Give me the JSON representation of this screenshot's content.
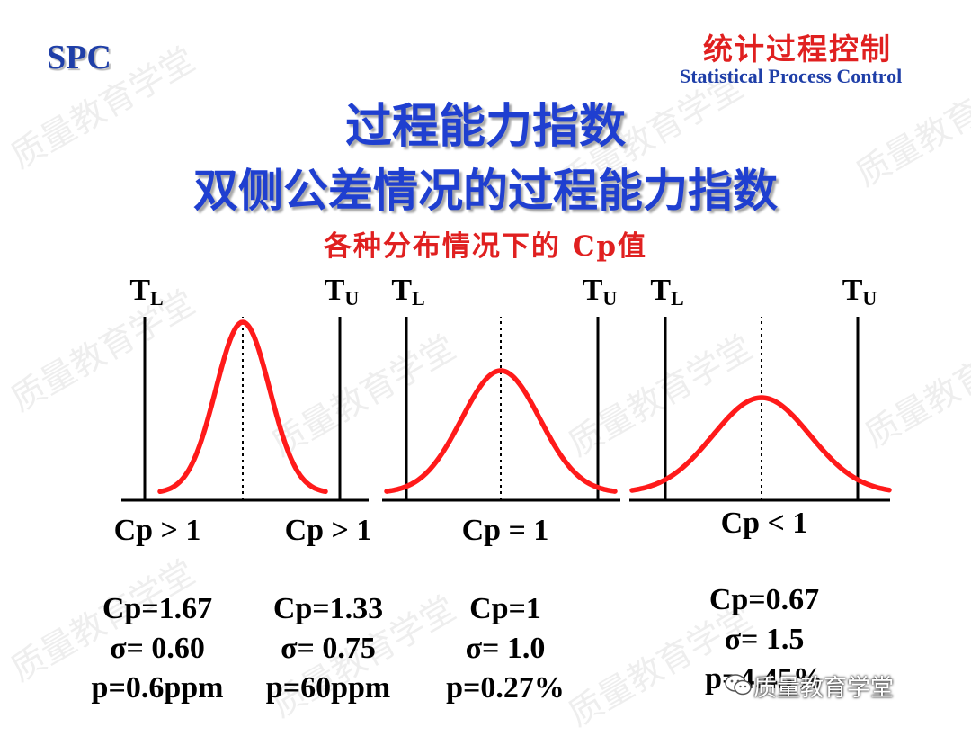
{
  "header": {
    "spc": "SPC",
    "topic_cn": "统计过程控制",
    "topic_en": "Statistical Process Control"
  },
  "title": {
    "line1": "过程能力指数",
    "line2": "双侧公差情况的过程能力指数"
  },
  "subtitle": "各种分布情况下的 Cp值",
  "panels": [
    {
      "lower_label": "T",
      "lower_sub": "L",
      "upper_label": "T",
      "upper_sub": "U",
      "captions": [
        "Cp > 1",
        "Cp > 1"
      ],
      "peak_level": 0.95
    },
    {
      "lower_label": "T",
      "lower_sub": "L",
      "upper_label": "T",
      "upper_sub": "U",
      "captions": [
        "Cp = 1"
      ],
      "peak_level": 0.68
    },
    {
      "lower_label": "T",
      "lower_sub": "L",
      "upper_label": "T",
      "upper_sub": "U",
      "captions": [
        "Cp < 1"
      ],
      "peak_level": 0.53
    }
  ],
  "stats": [
    {
      "cp": "Cp=1.67",
      "sigma": "σ= 0.60",
      "p": "p=0.6ppm"
    },
    {
      "cp": "Cp=1.33",
      "sigma": "σ= 0.75",
      "p": "p=60ppm"
    },
    {
      "cp": "Cp=1",
      "sigma": "σ= 1.0",
      "p": "p=0.27%"
    },
    {
      "cp": "Cp=0.67",
      "sigma": "σ= 1.5",
      "p": "p=4.45%"
    }
  ],
  "watermark": "质量教育学堂",
  "colors": {
    "title_blue": "#1f3fd0",
    "accent_red": "#e02020",
    "curve_red": "#ff1a1a"
  }
}
